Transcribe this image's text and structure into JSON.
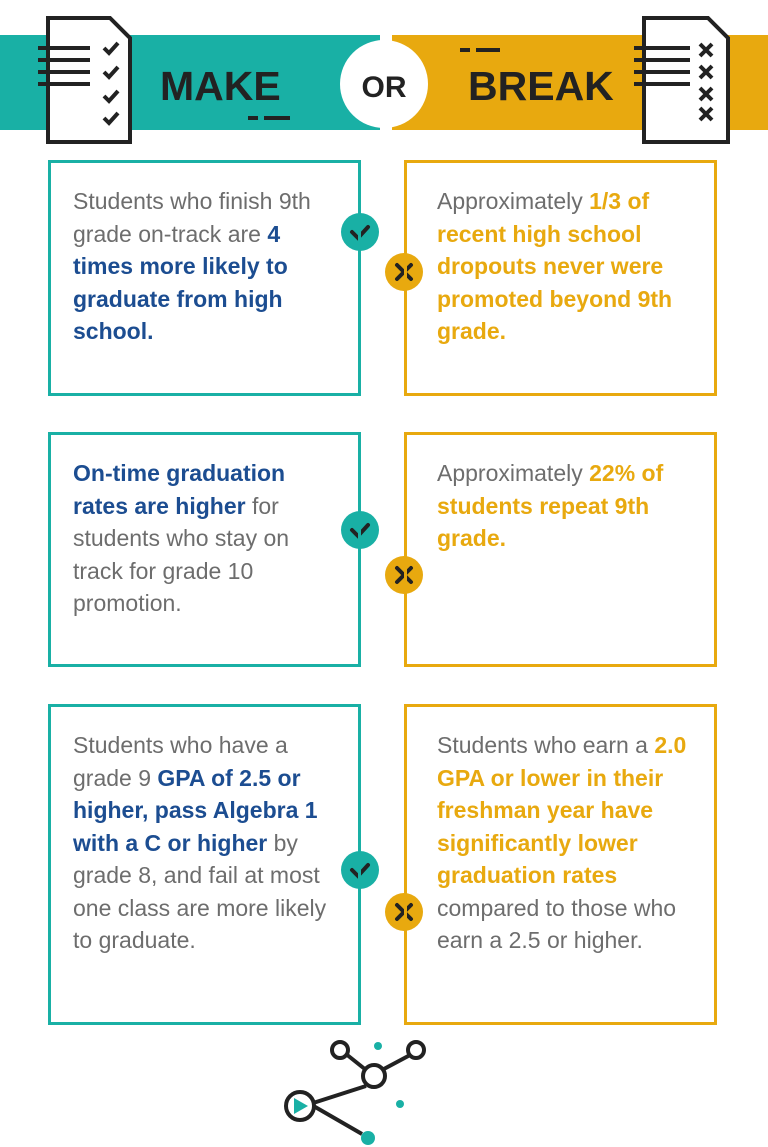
{
  "header": {
    "make": "MAKE",
    "or": "OR",
    "break": "BREAK"
  },
  "rows": [
    {
      "make": [
        {
          "text": "Students who finish 9th grade on-track are "
        },
        {
          "text": "4 times more likely to graduate from high school.",
          "strong": true
        }
      ],
      "break": [
        {
          "text": "Approximately "
        },
        {
          "text": "1/3 of recent high school dropouts never were promoted beyond 9th grade.",
          "strong": true
        }
      ]
    },
    {
      "make": [
        {
          "text": "On-time graduation rates are higher",
          "strong": true
        },
        {
          "text": " for students who stay on track for grade 10 promotion."
        }
      ],
      "break": [
        {
          "text": "Approximately "
        },
        {
          "text": "22% of students repeat 9th grade.",
          "strong": true
        }
      ]
    },
    {
      "make": [
        {
          "text": "Students who have a grade 9 "
        },
        {
          "text": "GPA of 2.5 or higher, pass Algebra 1 with a C or higher",
          "strong": true
        },
        {
          "text": " by grade 8, and fail at most one class are more likely to graduate."
        }
      ],
      "break": [
        {
          "text": "Students who earn a "
        },
        {
          "text": "2.0 GPA or lower in their freshman year have significantly lower graduation rates",
          "strong": true
        },
        {
          "text": " compared to those who earn a 2.5 or higher."
        }
      ]
    }
  ]
}
